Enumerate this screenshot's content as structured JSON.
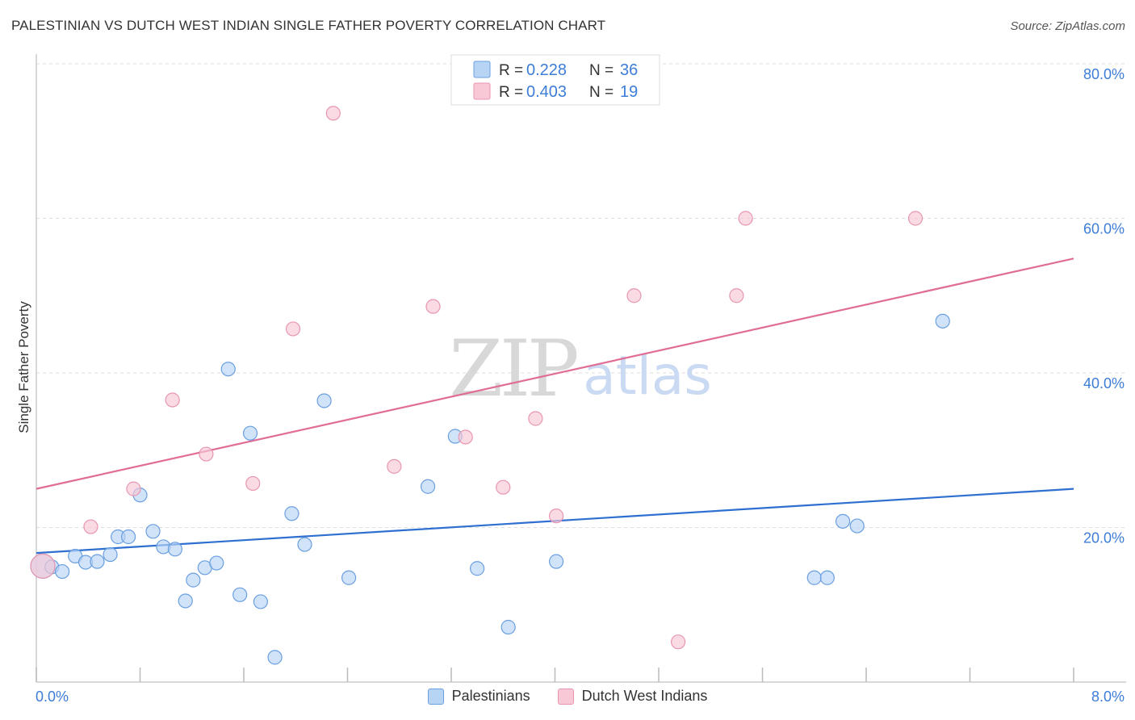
{
  "title": "PALESTINIAN VS DUTCH WEST INDIAN SINGLE FATHER POVERTY CORRELATION CHART",
  "source": "Source: ZipAtlas.com",
  "watermark": {
    "zip": "ZIP",
    "atlas": "atlas"
  },
  "colors": {
    "blue_fill": "#b8d4f5",
    "blue_stroke": "#6a9fe0",
    "blue_line": "#2e6fd0",
    "pink_fill": "#f8c8d6",
    "pink_stroke": "#e896b0",
    "pink_line": "#e06d96",
    "tick_text": "#3d7dd8",
    "grid": "#dddddd"
  },
  "legend": {
    "r_label": "R =",
    "n_label": "N =",
    "entries": [
      {
        "r": "0.228",
        "n": "36"
      },
      {
        "r": "0.403",
        "n": "19"
      }
    ]
  },
  "chart_data": {
    "type": "scatter",
    "xlabel": "",
    "ylabel": "Single Father Poverty",
    "xlim": [
      0,
      8
    ],
    "ylim": [
      0,
      80
    ],
    "y_ticks": [
      {
        "value": 20,
        "label": "20.0%"
      },
      {
        "value": 40,
        "label": "40.0%"
      },
      {
        "value": 60,
        "label": "60.0%"
      },
      {
        "value": 80,
        "label": "80.0%"
      }
    ],
    "x_tick_labels": [
      {
        "value": 0,
        "label": "0.0%"
      },
      {
        "value": 8,
        "label": "8.0%"
      }
    ],
    "grid": true,
    "legend_position": "top-center",
    "series": [
      {
        "name": "Palestinians",
        "color": "blue",
        "points": [
          [
            0.05,
            15.0
          ],
          [
            0.12,
            14.9
          ],
          [
            0.2,
            14.3
          ],
          [
            0.3,
            16.3
          ],
          [
            0.38,
            15.5
          ],
          [
            0.47,
            15.6
          ],
          [
            0.57,
            16.5
          ],
          [
            0.63,
            18.8
          ],
          [
            0.71,
            18.8
          ],
          [
            0.8,
            24.2
          ],
          [
            0.9,
            19.5
          ],
          [
            0.98,
            17.5
          ],
          [
            1.07,
            17.2
          ],
          [
            1.15,
            10.5
          ],
          [
            1.21,
            13.2
          ],
          [
            1.3,
            14.8
          ],
          [
            1.39,
            15.4
          ],
          [
            1.48,
            40.5
          ],
          [
            1.57,
            11.3
          ],
          [
            1.65,
            32.2
          ],
          [
            1.73,
            10.4
          ],
          [
            1.84,
            3.2
          ],
          [
            1.97,
            21.8
          ],
          [
            2.07,
            17.8
          ],
          [
            2.22,
            36.4
          ],
          [
            2.41,
            13.5
          ],
          [
            3.02,
            25.3
          ],
          [
            3.23,
            31.8
          ],
          [
            3.4,
            14.7
          ],
          [
            3.64,
            7.1
          ],
          [
            4.01,
            15.6
          ],
          [
            6.0,
            13.5
          ],
          [
            6.1,
            13.5
          ],
          [
            6.22,
            20.8
          ],
          [
            6.33,
            20.2
          ],
          [
            6.99,
            46.7
          ]
        ],
        "trend": [
          [
            0,
            16.7
          ],
          [
            8,
            25.0
          ]
        ]
      },
      {
        "name": "Dutch West Indians",
        "color": "pink",
        "points": [
          [
            0.05,
            15.0
          ],
          [
            0.42,
            20.1
          ],
          [
            0.75,
            25.0
          ],
          [
            1.05,
            36.5
          ],
          [
            1.31,
            29.5
          ],
          [
            1.67,
            25.7
          ],
          [
            1.98,
            45.7
          ],
          [
            2.29,
            73.6
          ],
          [
            2.76,
            27.9
          ],
          [
            3.06,
            48.6
          ],
          [
            3.31,
            31.7
          ],
          [
            3.6,
            25.2
          ],
          [
            3.85,
            34.1
          ],
          [
            4.01,
            21.5
          ],
          [
            4.61,
            50.0
          ],
          [
            4.95,
            5.2
          ],
          [
            5.4,
            50.0
          ],
          [
            5.47,
            60.0
          ],
          [
            6.78,
            60.0
          ]
        ],
        "trend": [
          [
            0,
            25.0
          ],
          [
            8,
            54.8
          ]
        ]
      }
    ]
  }
}
